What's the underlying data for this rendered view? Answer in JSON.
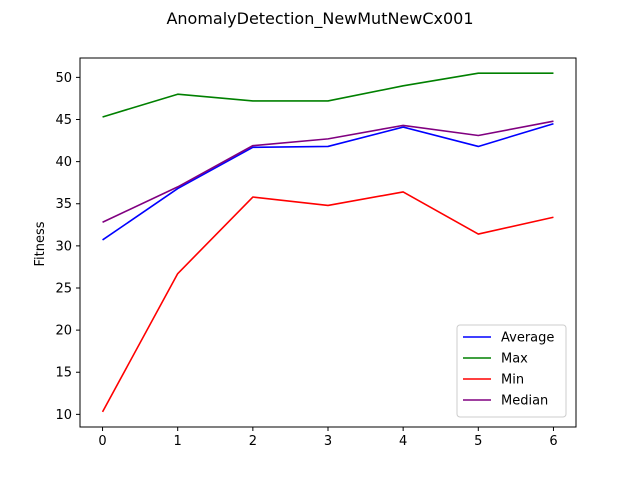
{
  "chart_data": {
    "type": "line",
    "title": "AnomalyDetection_NewMutNewCx001",
    "xlabel": "",
    "ylabel": "Fitness",
    "x": [
      0,
      1,
      2,
      3,
      4,
      5,
      6
    ],
    "xlim": [
      -0.3,
      6.3
    ],
    "ylim": [
      8.5,
      52.3
    ],
    "yticks": [
      10,
      15,
      20,
      25,
      30,
      35,
      40,
      45,
      50
    ],
    "grid": false,
    "legend_position": "lower-right",
    "series": [
      {
        "name": "Average",
        "color": "#0000ff",
        "values": [
          30.7,
          36.8,
          41.7,
          41.8,
          44.1,
          41.8,
          44.5
        ]
      },
      {
        "name": "Max",
        "color": "#008000",
        "values": [
          45.3,
          48.0,
          47.2,
          47.2,
          49.0,
          50.5,
          50.5
        ]
      },
      {
        "name": "Min",
        "color": "#ff0000",
        "values": [
          10.3,
          26.7,
          35.8,
          34.8,
          36.4,
          31.4,
          33.4
        ]
      },
      {
        "name": "Median",
        "color": "#800080",
        "values": [
          32.8,
          37.0,
          41.9,
          42.7,
          44.3,
          43.1,
          44.8
        ]
      }
    ]
  }
}
